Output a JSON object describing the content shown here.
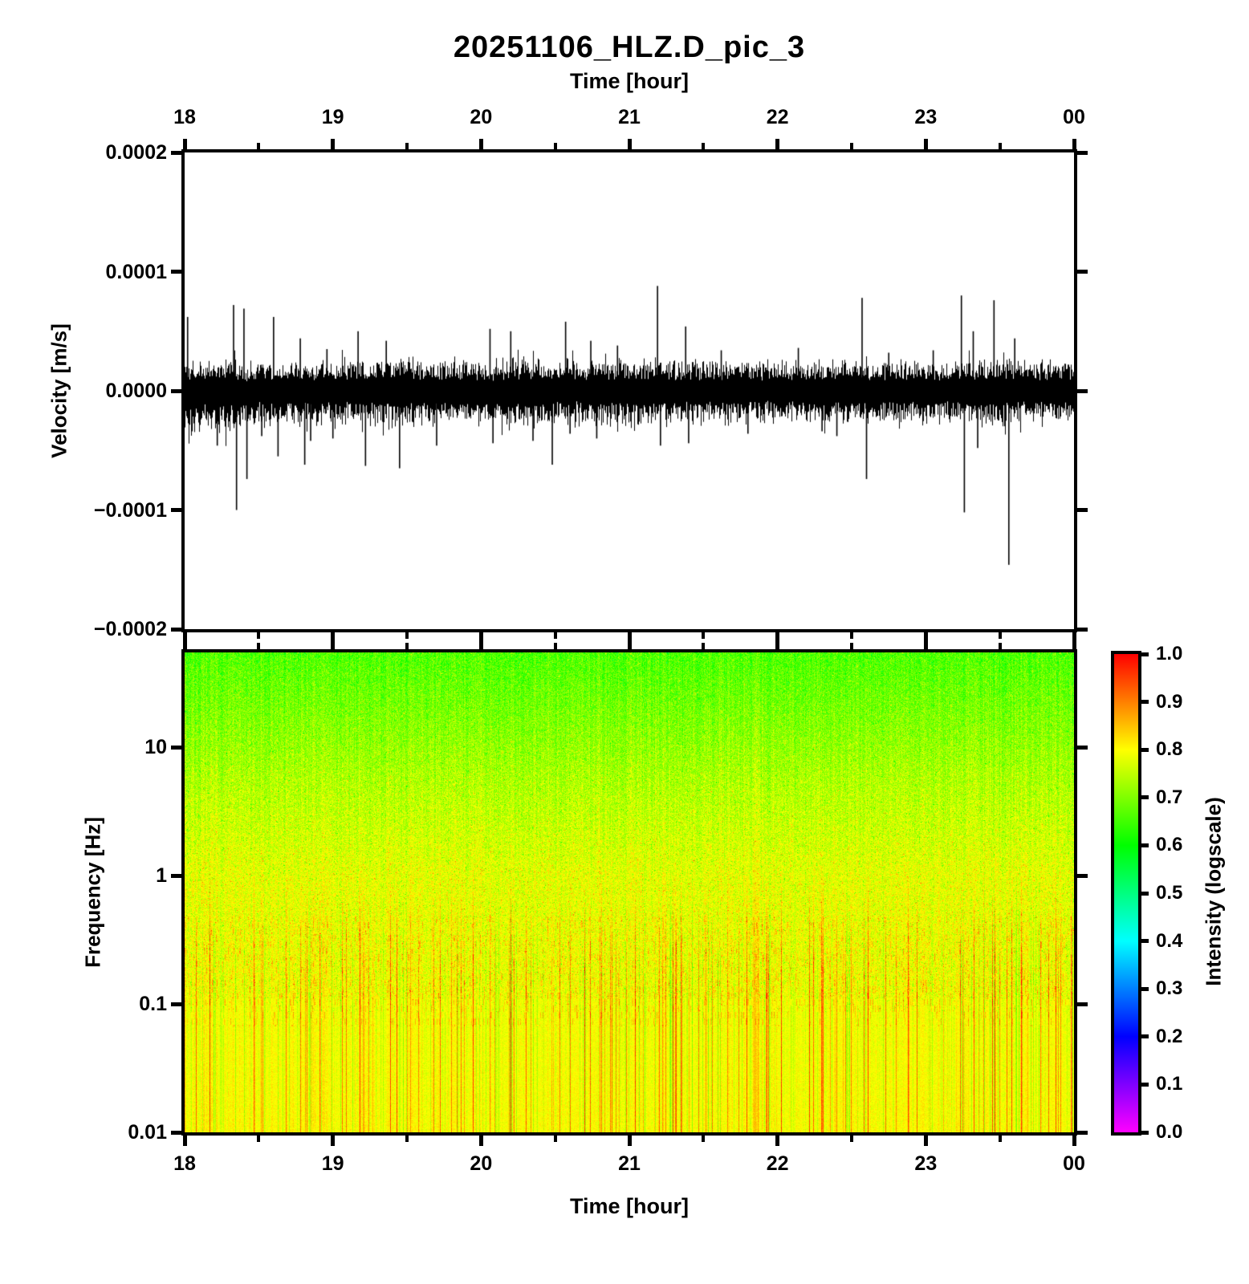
{
  "title": "20251106_HLZ.D_pic_3",
  "top_axis": {
    "label": "Time [hour]",
    "ticks": [
      "18",
      "19",
      "20",
      "21",
      "22",
      "23",
      "00"
    ]
  },
  "bottom_axis": {
    "label": "Time [hour]",
    "ticks": [
      "18",
      "19",
      "20",
      "21",
      "22",
      "23",
      "00"
    ]
  },
  "waveform_panel": {
    "ylabel": "Velocity [m/s]",
    "yticks": [
      "0.0002",
      "0.0001",
      "0.0000",
      "−0.0001",
      "−0.0002"
    ]
  },
  "spectrogram_panel": {
    "ylabel": "Frequency [Hz]",
    "yticks": [
      "10",
      "1",
      "0.1",
      "0.01"
    ]
  },
  "colorbar": {
    "label": "Intensity (logscale)",
    "ticks": [
      "1.0",
      "0.9",
      "0.8",
      "0.7",
      "0.6",
      "0.5",
      "0.4",
      "0.3",
      "0.2",
      "0.1",
      "0.0"
    ]
  },
  "chart_data": [
    {
      "type": "line",
      "title": "20251106_HLZ.D_pic_3",
      "xlabel": "Time [hour]",
      "ylabel": "Velocity [m/s]",
      "xlim": [
        18,
        24
      ],
      "ylim": [
        -0.0002,
        0.0002
      ],
      "xticks": [
        18,
        19,
        20,
        21,
        22,
        23,
        24
      ],
      "xtick_labels": [
        "18",
        "19",
        "20",
        "21",
        "22",
        "23",
        "00"
      ],
      "ytick_values": [
        0.0002,
        0.0001,
        0.0,
        -0.0001,
        -0.0002
      ],
      "line_color": "#000000",
      "description": "Continuous seismic velocity trace: dense noise band centered on 0 m/s, half-width about 1e-5 m/s, ragged hairs to about 2.5e-5 m/s, band slightly wider before 18:36, with isolated transient spikes.",
      "noise_band_halfwidth": 1.05e-05,
      "noise_hair_halfwidth": 2.6e-05,
      "spikes": [
        {
          "t": 18.02,
          "v": 6.2e-05
        },
        {
          "t": 18.05,
          "v": -3.4e-05
        },
        {
          "t": 18.22,
          "v": -4.6e-05
        },
        {
          "t": 18.33,
          "v": 7.2e-05
        },
        {
          "t": 18.35,
          "v": -0.0001
        },
        {
          "t": 18.4,
          "v": 6.9e-05
        },
        {
          "t": 18.42,
          "v": -7.4e-05
        },
        {
          "t": 18.52,
          "v": -3.8e-05
        },
        {
          "t": 18.6,
          "v": 6.2e-05
        },
        {
          "t": 18.63,
          "v": -5.5e-05
        },
        {
          "t": 18.78,
          "v": 4.4e-05
        },
        {
          "t": 18.81,
          "v": -6.2e-05
        },
        {
          "t": 18.85,
          "v": -4.2e-05
        },
        {
          "t": 18.96,
          "v": 3.5e-05
        },
        {
          "t": 19.0,
          "v": -4e-05
        },
        {
          "t": 19.17,
          "v": 5e-05
        },
        {
          "t": 19.22,
          "v": -6.3e-05
        },
        {
          "t": 19.36,
          "v": 4.2e-05
        },
        {
          "t": 19.45,
          "v": -6.5e-05
        },
        {
          "t": 19.7,
          "v": -4.6e-05
        },
        {
          "t": 20.06,
          "v": 5.2e-05
        },
        {
          "t": 20.08,
          "v": -4.4e-05
        },
        {
          "t": 20.2,
          "v": 5e-05
        },
        {
          "t": 20.35,
          "v": -4.2e-05
        },
        {
          "t": 20.48,
          "v": -6.2e-05
        },
        {
          "t": 20.57,
          "v": 5.8e-05
        },
        {
          "t": 20.6,
          "v": -3.6e-05
        },
        {
          "t": 20.74,
          "v": 4.2e-05
        },
        {
          "t": 20.78,
          "v": -4e-05
        },
        {
          "t": 20.92,
          "v": 3.8e-05
        },
        {
          "t": 21.19,
          "v": 8.8e-05
        },
        {
          "t": 21.21,
          "v": -4.6e-05
        },
        {
          "t": 21.38,
          "v": 5.4e-05
        },
        {
          "t": 21.4,
          "v": -4.4e-05
        },
        {
          "t": 21.62,
          "v": 3.4e-05
        },
        {
          "t": 21.8,
          "v": -3.6e-05
        },
        {
          "t": 22.14,
          "v": 3.6e-05
        },
        {
          "t": 22.3,
          "v": -3.4e-05
        },
        {
          "t": 22.4,
          "v": -3.8e-05
        },
        {
          "t": 22.57,
          "v": 7.8e-05
        },
        {
          "t": 22.6,
          "v": -7.4e-05
        },
        {
          "t": 22.75,
          "v": 3.2e-05
        },
        {
          "t": 23.05,
          "v": 3.4e-05
        },
        {
          "t": 23.24,
          "v": 8e-05
        },
        {
          "t": 23.26,
          "v": -0.000102
        },
        {
          "t": 23.32,
          "v": 5e-05
        },
        {
          "t": 23.35,
          "v": -4.8e-05
        },
        {
          "t": 23.46,
          "v": 7.6e-05
        },
        {
          "t": 23.56,
          "v": -0.000146
        },
        {
          "t": 23.6,
          "v": 4.4e-05
        }
      ]
    },
    {
      "type": "heatmap",
      "xlabel": "Time [hour]",
      "ylabel": "Frequency [Hz]",
      "xlim": [
        18,
        24
      ],
      "ylim": [
        0.01,
        55
      ],
      "yscale": "log",
      "ytick_values": [
        10,
        1,
        0.1,
        0.01
      ],
      "intensity_range": [
        0,
        1
      ],
      "intensity_label": "Intensity (logscale)",
      "intensity_profile": [
        {
          "freq_hz": 55,
          "intensity": 0.66
        },
        {
          "freq_hz": 5,
          "intensity": 0.74
        },
        {
          "freq_hz": 1,
          "intensity": 0.78
        },
        {
          "freq_hz": 0.1,
          "intensity": 0.79
        },
        {
          "freq_hz": 0.01,
          "intensity": 0.8
        }
      ],
      "features": "Green speckled field at high frequencies grading to solid yellow below ~2 Hz; dense vertical orange/red streaks and sparse green streaks below ~1 Hz, strongest toward 0.01 Hz; scattered red dashes near 0.2-0.5 Hz.",
      "colormap_stops": [
        {
          "value": 0.0,
          "color": "#ff00ff"
        },
        {
          "value": 0.2,
          "color": "#0000ff"
        },
        {
          "value": 0.4,
          "color": "#00ffff"
        },
        {
          "value": 0.6,
          "color": "#00ff00"
        },
        {
          "value": 0.8,
          "color": "#ffff00"
        },
        {
          "value": 1.0,
          "color": "#ff0000"
        }
      ]
    }
  ]
}
